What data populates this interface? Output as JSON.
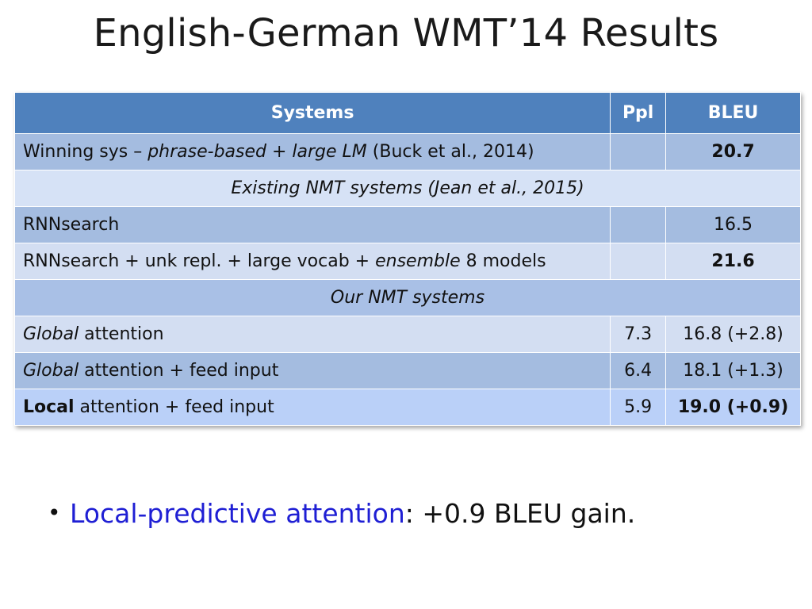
{
  "title": "English-German WMT’14 Results",
  "table": {
    "headers": [
      "Systems",
      "Ppl",
      "BLEU"
    ],
    "rows": [
      {
        "prefix": "Winning sys – ",
        "italic": "phrase-based + large LM",
        "suffix": " (Buck et al., 2014)",
        "ppl": "",
        "bleu": "20.7",
        "bleu_bold": true
      },
      {
        "section": "Existing NMT systems (Jean et al., 2015)"
      },
      {
        "prefix": "RNNsearch",
        "ppl": "",
        "bleu": "16.5"
      },
      {
        "prefix": "RNNsearch + unk repl. + large vocab + ",
        "italic": "ensemble",
        "suffix": " 8 models",
        "ppl": "",
        "bleu": "21.6",
        "bleu_bold": true
      },
      {
        "section": "Our NMT systems"
      },
      {
        "italic": "Global",
        "suffix": " attention",
        "ppl": "7.3",
        "bleu": "16.8 (+2.8)"
      },
      {
        "italic": "Global",
        "suffix": " attention + feed input",
        "ppl": "6.4",
        "bleu": "18.1 (+1.3)"
      },
      {
        "bold": "Local",
        "suffix": " attention + feed input",
        "ppl": "5.9",
        "bleu": "19.0 (+0.9)",
        "bleu_bold": true
      }
    ]
  },
  "bullet": {
    "dot": "•",
    "highlight": "Local-predictive attention",
    "rest": ": +0.9 BLEU gain."
  },
  "colors": {
    "header": "#4f81bd",
    "highlight": "#1f1fd4"
  }
}
